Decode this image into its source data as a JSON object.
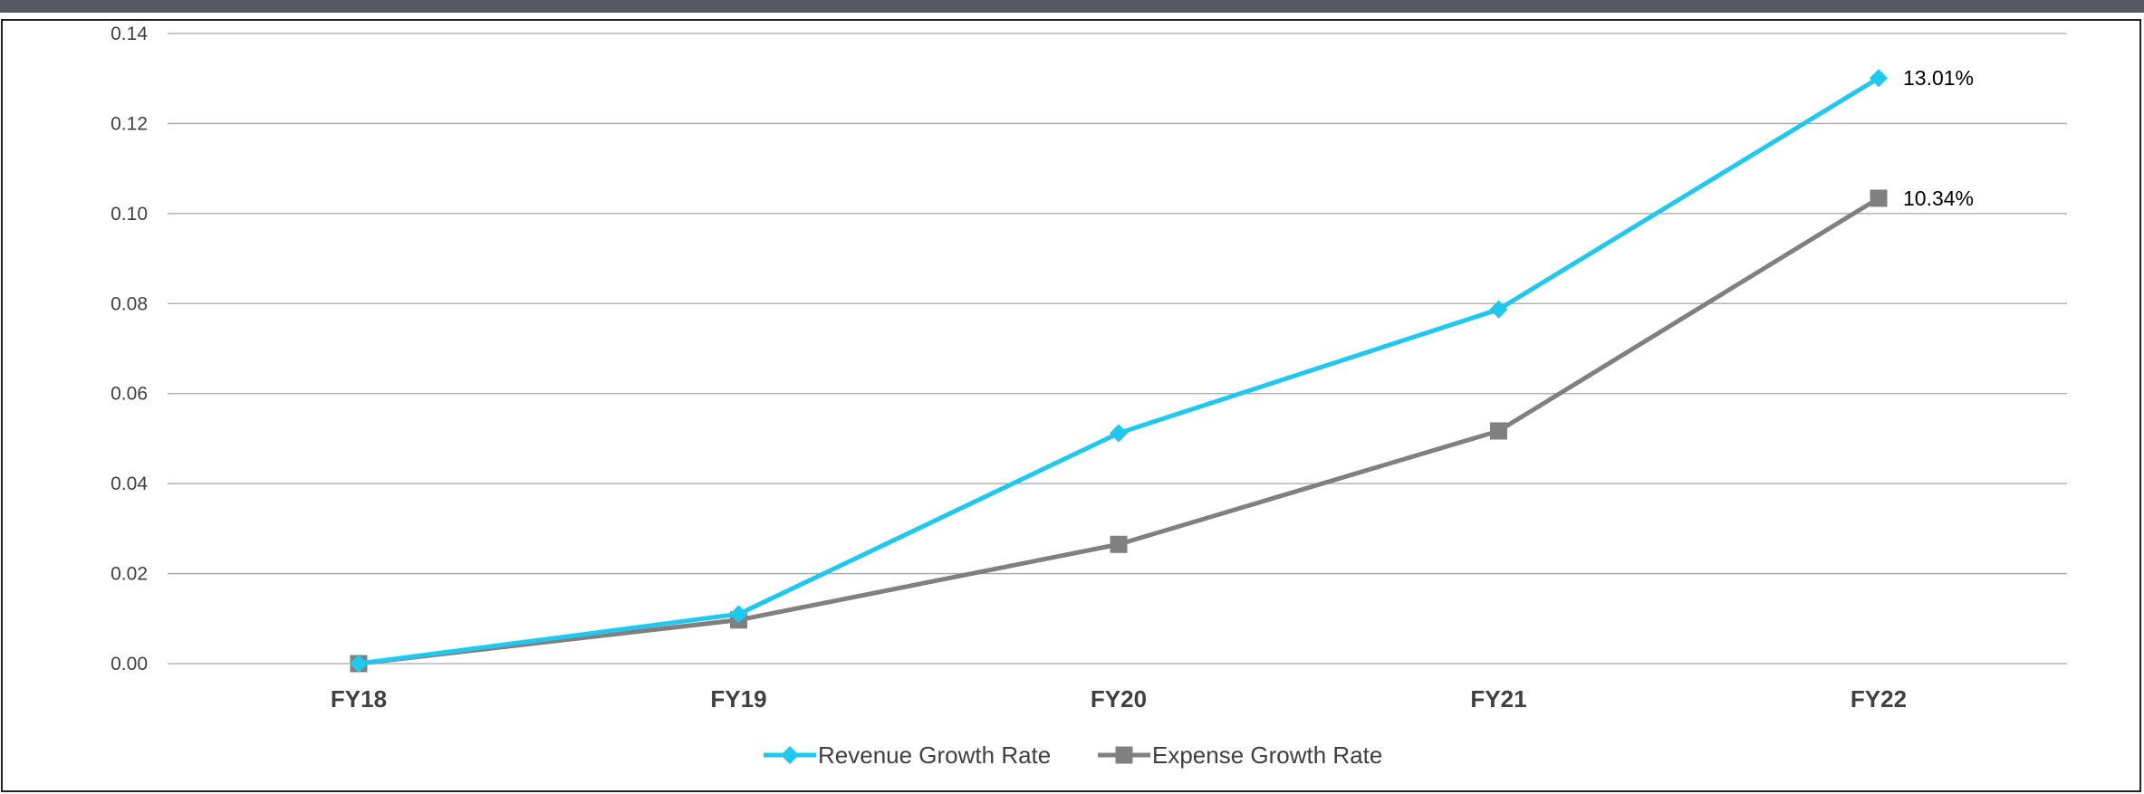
{
  "colors": {
    "topbar": "#545861",
    "grid": "#a6a6a6",
    "frame": "#222222"
  },
  "chart_data": {
    "type": "line",
    "categories": [
      "FY18",
      "FY19",
      "FY20",
      "FY21",
      "FY22"
    ],
    "ylim": [
      0,
      0.14
    ],
    "yticks": [
      "0.00",
      "0.02",
      "0.04",
      "0.06",
      "0.08",
      "0.10",
      "0.12",
      "0.14"
    ],
    "grid": true,
    "legend_position": "bottom",
    "series": [
      {
        "name": "Revenue Growth Rate",
        "values": [
          0.0,
          0.011,
          0.0512,
          0.0787,
          0.1301
        ],
        "color": "#1ec8ee",
        "marker": "diamond",
        "labels": [
          "",
          "",
          "",
          "",
          "13.01%"
        ]
      },
      {
        "name": "Expense Growth Rate",
        "values": [
          0.0,
          0.0097,
          0.0265,
          0.0517,
          0.1034
        ],
        "color": "#808080",
        "marker": "square",
        "labels": [
          "",
          "",
          "",
          "",
          "10.34%"
        ]
      }
    ]
  }
}
